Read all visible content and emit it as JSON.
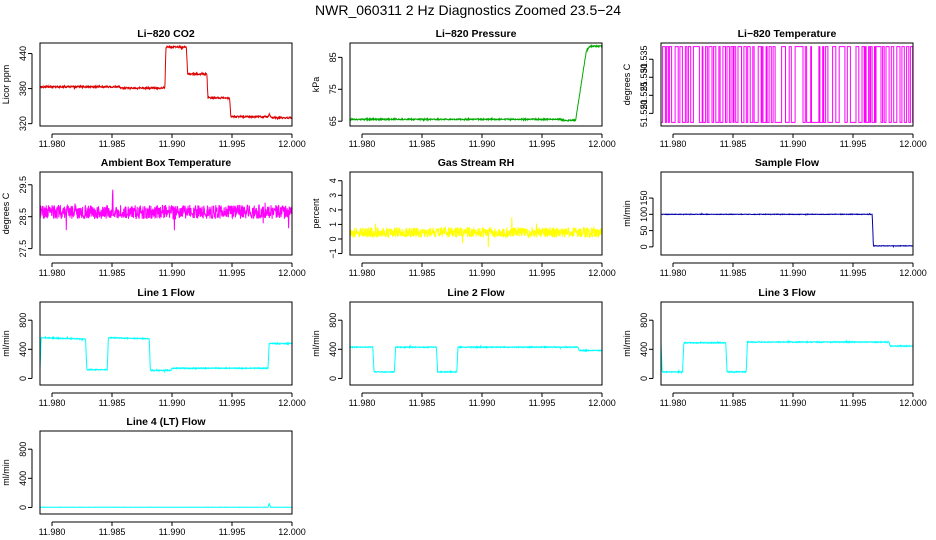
{
  "figure": {
    "title": "NWR_060311  2 Hz Diagnostics Zoomed 23.5−24"
  },
  "chart_data": [
    {
      "type": "line",
      "title": "Li−820 CO2",
      "ylabel": "Licor ppm",
      "color": "#dd0000",
      "xlim": [
        11.979,
        12.0
      ],
      "ylim": [
        316,
        458
      ],
      "xticks": [
        11.98,
        11.985,
        11.99,
        11.995,
        12.0
      ],
      "xtick_labels": [
        "11.980",
        "11.985",
        "11.990",
        "11.995",
        "12.000"
      ],
      "yticks": [
        320,
        380,
        440
      ],
      "ytick_labels": [
        "320",
        "380",
        "440"
      ],
      "noise": 1.5,
      "series": [
        {
          "segments": [
            [
              11.979,
              383
            ],
            [
              11.9856,
              383
            ],
            [
              11.9858,
              381
            ],
            [
              11.9894,
              381
            ],
            [
              11.9895,
              451
            ],
            [
              11.9912,
              451
            ],
            [
              11.9913,
              405
            ],
            [
              11.9929,
              405
            ],
            [
              11.993,
              364
            ],
            [
              11.9948,
              364
            ],
            [
              11.9949,
              332
            ],
            [
              11.998,
              332
            ],
            [
              11.9981,
              336
            ],
            [
              11.9983,
              330
            ],
            [
              12.0,
              330
            ]
          ]
        }
      ]
    },
    {
      "type": "line",
      "title": "Li−820 Pressure",
      "ylabel": "kPa",
      "color": "#00aa00",
      "xlim": [
        11.979,
        12.0
      ],
      "ylim": [
        63.5,
        89.5
      ],
      "xticks": [
        11.98,
        11.985,
        11.99,
        11.995,
        12.0
      ],
      "xtick_labels": [
        "11.980",
        "11.985",
        "11.990",
        "11.995",
        "12.000"
      ],
      "yticks": [
        65,
        75,
        85
      ],
      "ytick_labels": [
        "65",
        "75",
        "85"
      ],
      "noise": 0.2,
      "series": [
        {
          "segments": [
            [
              11.979,
              65.6
            ],
            [
              11.9965,
              65.6
            ],
            [
              11.9968,
              65.2
            ],
            [
              11.9978,
              65.3
            ],
            [
              11.998,
              70
            ],
            [
              11.9984,
              80
            ],
            [
              11.9987,
              87
            ],
            [
              11.999,
              88.5
            ],
            [
              12.0,
              88.5
            ]
          ]
        }
      ]
    },
    {
      "type": "line",
      "title": "Li−820 Temperature",
      "ylabel": "degrees C",
      "color": "#ff00ff",
      "xlim": [
        11.979,
        12.0
      ],
      "ylim": [
        51.5165,
        51.5395
      ],
      "xticks": [
        11.98,
        11.985,
        11.99,
        11.995,
        12.0
      ],
      "xtick_labels": [
        "11.980",
        "11.985",
        "11.990",
        "11.995",
        "12.000"
      ],
      "yticks": [
        51.52,
        51.525,
        51.53,
        51.535
      ],
      "ytick_labels": [
        "51.520",
        "51.525",
        "51.530",
        "51.535"
      ],
      "switching": {
        "low": 51.5175,
        "high": 51.5385
      }
    },
    {
      "type": "line",
      "title": "Ambient Box Temperature",
      "ylabel": "degrees C",
      "color": "#ff00ff",
      "xlim": [
        11.979,
        12.0
      ],
      "ylim": [
        27.3,
        29.9
      ],
      "xticks": [
        11.98,
        11.985,
        11.99,
        11.995,
        12.0
      ],
      "xtick_labels": [
        "11.980",
        "11.985",
        "11.990",
        "11.995",
        "12.000"
      ],
      "yticks": [
        27.5,
        28.5,
        29.5
      ],
      "ytick_labels": [
        "27.5",
        "28.5",
        "29.5"
      ],
      "noise": 0.22,
      "series": [
        {
          "segments": [
            [
              11.979,
              28.65
            ],
            [
              12.0,
              28.65
            ]
          ]
        }
      ]
    },
    {
      "type": "line",
      "title": "Gas Stream RH",
      "ylabel": "percent",
      "color": "#ffff00",
      "xlim": [
        11.979,
        12.0
      ],
      "ylim": [
        -1.1,
        4.6
      ],
      "xticks": [
        11.98,
        11.985,
        11.99,
        11.995,
        12.0
      ],
      "xtick_labels": [
        "11.980",
        "11.985",
        "11.990",
        "11.995",
        "12.000"
      ],
      "yticks": [
        -1,
        0,
        1,
        2,
        3,
        4
      ],
      "ytick_labels": [
        "−1",
        "0",
        "1",
        "2",
        "3",
        "4"
      ],
      "noise": 0.35,
      "series": [
        {
          "segments": [
            [
              11.979,
              0.45
            ],
            [
              12.0,
              0.45
            ]
          ]
        }
      ]
    },
    {
      "type": "line",
      "title": "Sample Flow",
      "ylabel": "ml/min",
      "color": "#0000aa",
      "xlim": [
        11.979,
        12.0
      ],
      "ylim": [
        -25,
        230
      ],
      "xticks": [
        11.98,
        11.985,
        11.99,
        11.995,
        12.0
      ],
      "xtick_labels": [
        "11.980",
        "11.985",
        "11.990",
        "11.995",
        "12.000"
      ],
      "yticks": [
        0,
        50,
        100,
        150
      ],
      "ytick_labels": [
        "0",
        "50",
        "100",
        "150"
      ],
      "noise": 0.8,
      "series": [
        {
          "segments": [
            [
              11.979,
              100
            ],
            [
              11.9966,
              100
            ],
            [
              11.9967,
              3
            ],
            [
              12.0,
              3
            ]
          ]
        }
      ]
    },
    {
      "type": "line",
      "title": "Line 1 Flow",
      "ylabel": "ml/min",
      "color": "#00ffff",
      "xlim": [
        11.979,
        12.0
      ],
      "ylim": [
        -90,
        1050
      ],
      "xticks": [
        11.98,
        11.985,
        11.99,
        11.995,
        12.0
      ],
      "xtick_labels": [
        "11.980",
        "11.985",
        "11.990",
        "11.995",
        "12.000"
      ],
      "yticks": [
        0,
        400,
        800
      ],
      "ytick_labels": [
        "0",
        "400",
        "800"
      ],
      "noise": 6,
      "series": [
        {
          "segments": [
            [
              11.979,
              130
            ],
            [
              11.9791,
              560
            ],
            [
              11.9828,
              540
            ],
            [
              11.9829,
              120
            ],
            [
              11.9846,
              120
            ],
            [
              11.9847,
              560
            ],
            [
              11.9881,
              545
            ],
            [
              11.9882,
              110
            ],
            [
              11.9899,
              110
            ],
            [
              11.99,
              140
            ],
            [
              11.998,
              140
            ],
            [
              11.9981,
              480
            ],
            [
              12.0,
              480
            ]
          ]
        }
      ]
    },
    {
      "type": "line",
      "title": "Line 2 Flow",
      "ylabel": "ml/min",
      "color": "#00ffff",
      "xlim": [
        11.979,
        12.0
      ],
      "ylim": [
        -90,
        1050
      ],
      "xticks": [
        11.98,
        11.985,
        11.99,
        11.995,
        12.0
      ],
      "xtick_labels": [
        "11.980",
        "11.985",
        "11.990",
        "11.995",
        "12.000"
      ],
      "yticks": [
        0,
        400,
        800
      ],
      "ytick_labels": [
        "0",
        "400",
        "800"
      ],
      "noise": 6,
      "series": [
        {
          "segments": [
            [
              11.979,
              430
            ],
            [
              11.9809,
              430
            ],
            [
              11.981,
              90
            ],
            [
              11.9827,
              90
            ],
            [
              11.9828,
              430
            ],
            [
              11.9862,
              430
            ],
            [
              11.9863,
              90
            ],
            [
              11.9879,
              90
            ],
            [
              11.988,
              430
            ],
            [
              11.998,
              430
            ],
            [
              11.9981,
              385
            ],
            [
              12.0,
              385
            ]
          ]
        }
      ]
    },
    {
      "type": "line",
      "title": "Line 3 Flow",
      "ylabel": "ml/min",
      "color": "#00ffff",
      "xlim": [
        11.979,
        12.0
      ],
      "ylim": [
        -90,
        1050
      ],
      "xticks": [
        11.98,
        11.985,
        11.99,
        11.995,
        12.0
      ],
      "xtick_labels": [
        "11.980",
        "11.985",
        "11.990",
        "11.995",
        "12.000"
      ],
      "yticks": [
        0,
        400,
        800
      ],
      "ytick_labels": [
        "0",
        "400",
        "800"
      ],
      "noise": 6,
      "series": [
        {
          "segments": [
            [
              11.979,
              480
            ],
            [
              11.9791,
              90
            ],
            [
              11.9808,
              90
            ],
            [
              11.9809,
              490
            ],
            [
              11.9844,
              490
            ],
            [
              11.9845,
              90
            ],
            [
              11.9861,
              90
            ],
            [
              11.9862,
              500
            ],
            [
              11.998,
              500
            ],
            [
              11.9981,
              445
            ],
            [
              12.0,
              445
            ]
          ]
        }
      ]
    },
    {
      "type": "line",
      "title": "Line 4 (LT) Flow",
      "ylabel": "ml/min",
      "color": "#00ffff",
      "xlim": [
        11.979,
        12.0
      ],
      "ylim": [
        -90,
        1050
      ],
      "xticks": [
        11.98,
        11.985,
        11.99,
        11.995,
        12.0
      ],
      "xtick_labels": [
        "11.980",
        "11.985",
        "11.990",
        "11.995",
        "12.000"
      ],
      "yticks": [
        0,
        400,
        800
      ],
      "ytick_labels": [
        "0",
        "400",
        "800"
      ],
      "noise": 1.5,
      "series": [
        {
          "segments": [
            [
              11.979,
              3
            ],
            [
              11.998,
              3
            ],
            [
              11.9981,
              60
            ],
            [
              11.9982,
              3
            ],
            [
              12.0,
              3
            ]
          ]
        }
      ]
    }
  ]
}
